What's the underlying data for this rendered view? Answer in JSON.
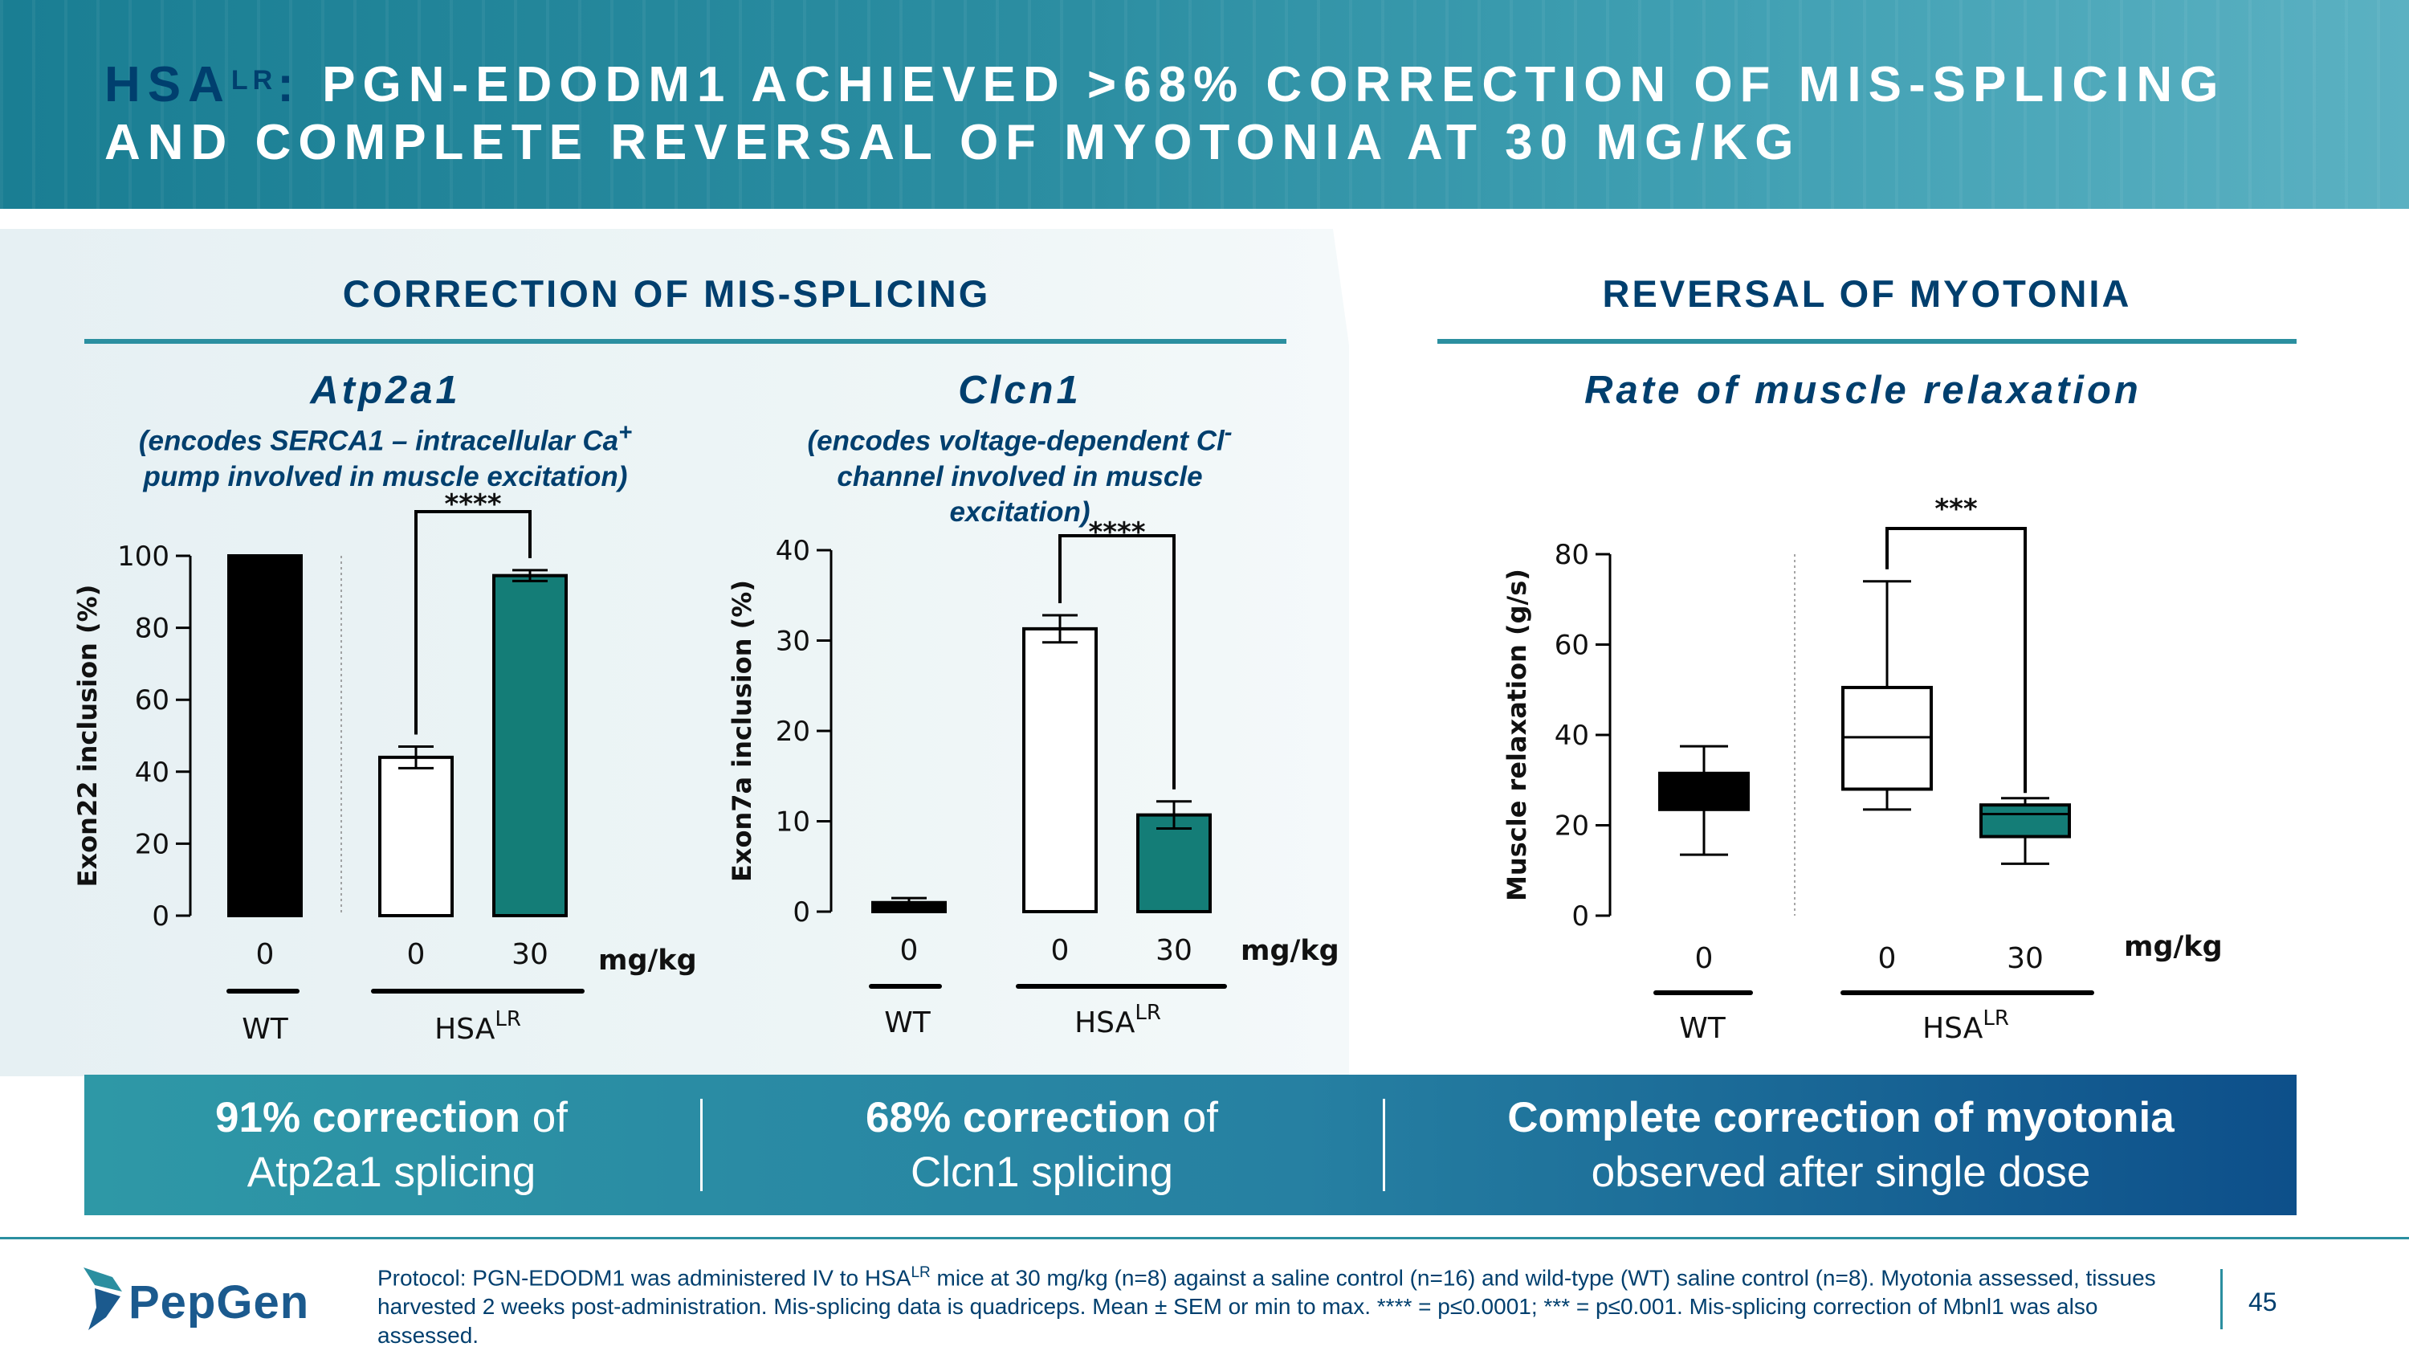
{
  "header": {
    "title_prefix": "HSA",
    "title_sup": "LR",
    "title_colon": ":",
    "title_line1": " PGN-EDODM1 ACHIEVED >68% CORRECTION OF MIS-SPLICING",
    "title_line2": "AND COMPLETE REVERSAL OF MYOTONIA AT 30 MG/KG"
  },
  "sections": {
    "left_title": "CORRECTION OF MIS-SPLICING",
    "right_title": "REVERSAL OF MYOTONIA"
  },
  "charts": {
    "atp2a1": {
      "title": "Atp2a1",
      "subtitle_line1": "(encodes SERCA1 – intracellular Ca",
      "subtitle_sup": "+",
      "subtitle_line2": "pump involved in muscle excitation)"
    },
    "clcn1": {
      "title": "Clcn1",
      "subtitle_line1": "(encodes voltage-dependent Cl",
      "subtitle_sup": "-",
      "subtitle_line2": "channel involved in muscle",
      "subtitle_line3": "excitation)"
    },
    "myotonia": {
      "title": "Rate of muscle relaxation"
    }
  },
  "chart_data": [
    {
      "type": "bar",
      "name": "atp2a1",
      "ylabel": "Exon22 inclusion (%)",
      "ylim": [
        0,
        100
      ],
      "yticks": [
        0,
        20,
        40,
        60,
        80,
        100
      ],
      "unit_label": "mg/kg",
      "categories": [
        "0",
        "0",
        "30"
      ],
      "groups": [
        {
          "label": "WT",
          "sup": ""
        },
        {
          "label": "HSA",
          "sup": "LR"
        }
      ],
      "values": [
        100,
        44,
        94.5
      ],
      "errors": [
        0,
        3,
        1.5
      ],
      "colors": [
        "#000000",
        "#ffffff",
        "#147d77"
      ],
      "significance": "****"
    },
    {
      "type": "bar",
      "name": "clcn1",
      "ylabel": "Exon7a inclusion (%)",
      "ylim": [
        0,
        40
      ],
      "yticks": [
        0,
        10,
        20,
        30,
        40
      ],
      "unit_label": "mg/kg",
      "categories": [
        "0",
        "0",
        "30"
      ],
      "groups": [
        {
          "label": "WT",
          "sup": ""
        },
        {
          "label": "HSA",
          "sup": "LR"
        }
      ],
      "values": [
        1,
        31.3,
        10.7
      ],
      "errors": [
        0.5,
        1.5,
        1.5
      ],
      "colors": [
        "#000000",
        "#ffffff",
        "#147d77"
      ],
      "significance": "****"
    },
    {
      "type": "box",
      "name": "myotonia",
      "ylabel": "Muscle relaxation (g/s)",
      "ylim": [
        0,
        80
      ],
      "yticks": [
        0,
        20,
        40,
        60,
        80
      ],
      "unit_label": "mg/kg",
      "categories": [
        "0",
        "0",
        "30"
      ],
      "groups": [
        {
          "label": "WT",
          "sup": ""
        },
        {
          "label": "HSA",
          "sup": "LR"
        }
      ],
      "boxes": [
        {
          "min": 13.5,
          "q1": 23.5,
          "median": 28,
          "q3": 31.5,
          "max": 37.5
        },
        {
          "min": 23.5,
          "q1": 28,
          "median": 39.5,
          "q3": 50.5,
          "max": 74
        },
        {
          "min": 11.5,
          "q1": 17.5,
          "median": 22.5,
          "q3": 24.5,
          "max": 26
        }
      ],
      "colors": [
        "#000000",
        "#ffffff",
        "#147d77"
      ],
      "significance": "***"
    }
  ],
  "banner": [
    {
      "bold": "91% correction",
      "rest": " of",
      "line2": "Atp2a1 splicing"
    },
    {
      "bold": "68% correction",
      "rest": " of",
      "line2": "Clcn1 splicing"
    },
    {
      "bold": "Complete correction of myotonia",
      "rest": "",
      "line2": "observed after single dose"
    }
  ],
  "footer": {
    "logo_text": "PepGen",
    "protocol_a": "Protocol: PGN-EDODM1 was administered IV to HSA",
    "protocol_sup": "LR",
    "protocol_b": " mice at 30 mg/kg (n=8) against a saline control (n=16) and wild-type (WT) saline control (n=8). Myotonia assessed, tissues harvested 2 weeks post-administration. Mis-splicing data is quadriceps. Mean ± SEM or min to max. **** = p≤0.0001; *** = p≤0.001. Mis-splicing correction of Mbnl1 was also assessed.",
    "page_number": "45"
  }
}
